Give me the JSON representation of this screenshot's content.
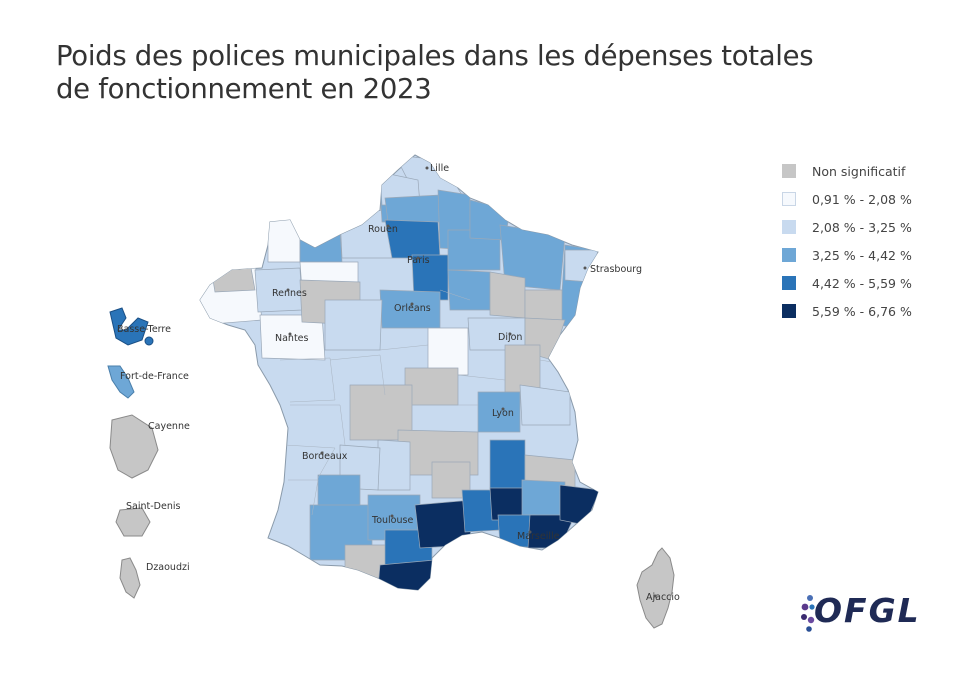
{
  "title": {
    "line1": "Poids des polices municipales dans les dépenses totales",
    "line2": "de fonctionnement en 2023"
  },
  "legend": [
    {
      "label": "Non significatif",
      "color": "#c6c6c6"
    },
    {
      "label": "0,91 % - 2,08 %",
      "color": "#f6f9fd"
    },
    {
      "label": "2,08 % - 3,25 %",
      "color": "#c8daef"
    },
    {
      "label": "3,25 % - 4,42 %",
      "color": "#6ea7d6"
    },
    {
      "label": "4,42 % - 5,59 %",
      "color": "#2a74b8"
    },
    {
      "label": "5,59 % - 6,76 %",
      "color": "#0b2e61"
    }
  ],
  "cities": [
    "Lille",
    "Rouen",
    "Paris",
    "Strasbourg",
    "Rennes",
    "Orléans",
    "Nantes",
    "Dijon",
    "Lyon",
    "Bordeaux",
    "Toulouse",
    "Marseille",
    "Ajaccio"
  ],
  "overseas": [
    "Basse-Terre",
    "Fort-de-France",
    "Cayenne",
    "Saint-Denis",
    "Dzaoudzi"
  ],
  "logo": {
    "text": "OFGL"
  }
}
